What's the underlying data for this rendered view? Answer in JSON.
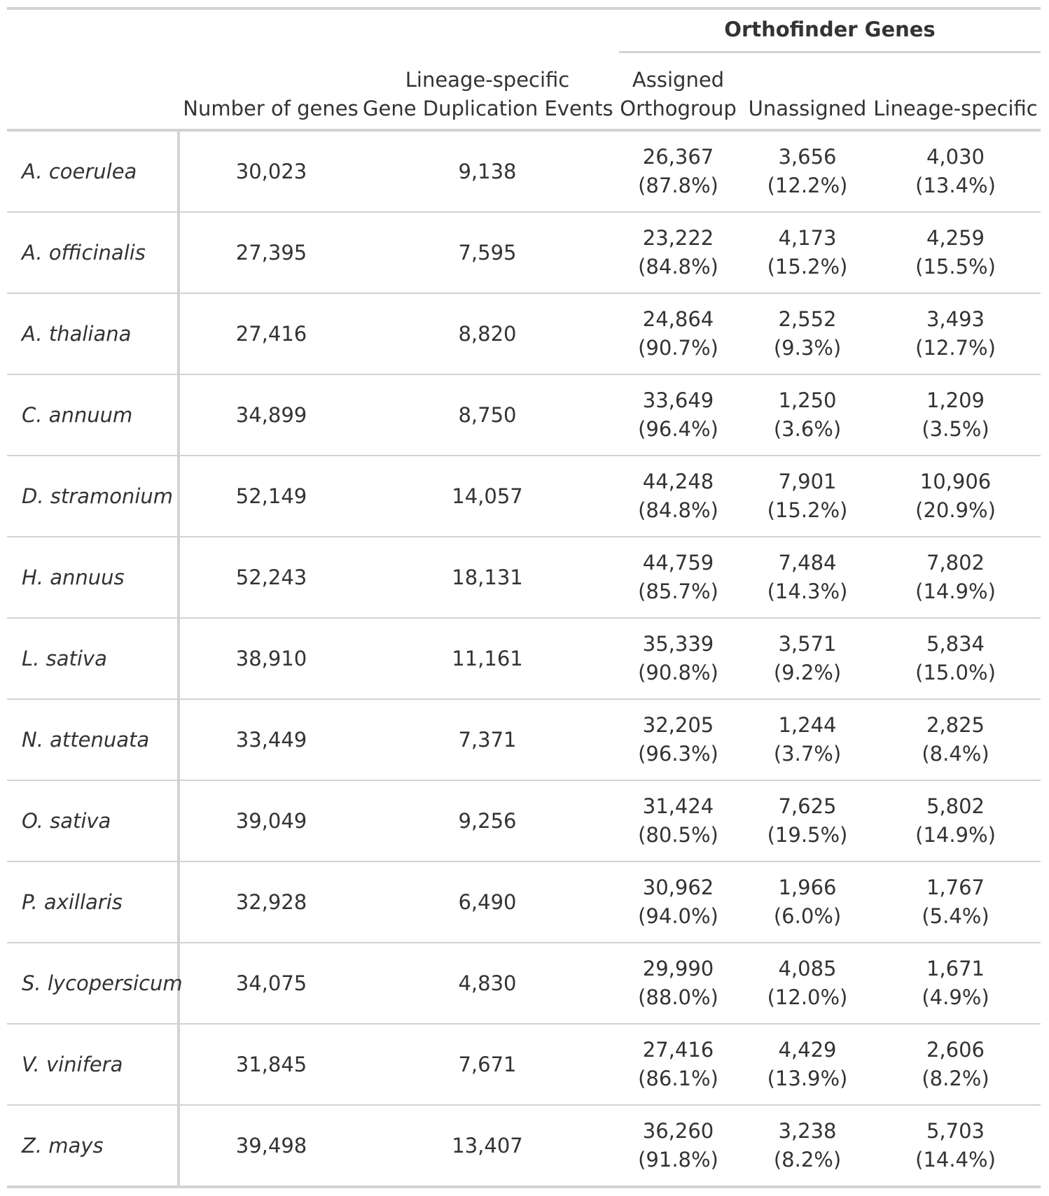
{
  "table": {
    "spanner_label": "Orthofinder Genes",
    "columns": {
      "species": "",
      "number_of_genes": "Number of genes",
      "duplication": [
        "Lineage-specific",
        "Gene Duplication Events"
      ],
      "assigned": [
        "Assigned",
        "Orthogroup"
      ],
      "unassigned": "Unassigned",
      "lineage_specific": "Lineage-specific"
    },
    "rows": [
      {
        "species": "A. coerulea",
        "genes": "30,023",
        "duplications": "9,138",
        "assigned": "26,367",
        "assigned_pct": "(87.8%)",
        "unassigned": "3,656",
        "unassigned_pct": "(12.2%)",
        "lineage": "4,030",
        "lineage_pct": "(13.4%)"
      },
      {
        "species": "A. officinalis",
        "genes": "27,395",
        "duplications": "7,595",
        "assigned": "23,222",
        "assigned_pct": "(84.8%)",
        "unassigned": "4,173",
        "unassigned_pct": "(15.2%)",
        "lineage": "4,259",
        "lineage_pct": "(15.5%)"
      },
      {
        "species": "A. thaliana",
        "genes": "27,416",
        "duplications": "8,820",
        "assigned": "24,864",
        "assigned_pct": "(90.7%)",
        "unassigned": "2,552",
        "unassigned_pct": "(9.3%)",
        "lineage": "3,493",
        "lineage_pct": "(12.7%)"
      },
      {
        "species": "C. annuum",
        "genes": "34,899",
        "duplications": "8,750",
        "assigned": "33,649",
        "assigned_pct": "(96.4%)",
        "unassigned": "1,250",
        "unassigned_pct": "(3.6%)",
        "lineage": "1,209",
        "lineage_pct": "(3.5%)"
      },
      {
        "species": "D. stramonium",
        "genes": "52,149",
        "duplications": "14,057",
        "assigned": "44,248",
        "assigned_pct": "(84.8%)",
        "unassigned": "7,901",
        "unassigned_pct": "(15.2%)",
        "lineage": "10,906",
        "lineage_pct": "(20.9%)"
      },
      {
        "species": "H. annuus",
        "genes": "52,243",
        "duplications": "18,131",
        "assigned": "44,759",
        "assigned_pct": "(85.7%)",
        "unassigned": "7,484",
        "unassigned_pct": "(14.3%)",
        "lineage": "7,802",
        "lineage_pct": "(14.9%)"
      },
      {
        "species": "L. sativa",
        "genes": "38,910",
        "duplications": "11,161",
        "assigned": "35,339",
        "assigned_pct": "(90.8%)",
        "unassigned": "3,571",
        "unassigned_pct": "(9.2%)",
        "lineage": "5,834",
        "lineage_pct": "(15.0%)"
      },
      {
        "species": "N. attenuata",
        "genes": "33,449",
        "duplications": "7,371",
        "assigned": "32,205",
        "assigned_pct": "(96.3%)",
        "unassigned": "1,244",
        "unassigned_pct": "(3.7%)",
        "lineage": "2,825",
        "lineage_pct": "(8.4%)"
      },
      {
        "species": "O. sativa",
        "genes": "39,049",
        "duplications": "9,256",
        "assigned": "31,424",
        "assigned_pct": "(80.5%)",
        "unassigned": "7,625",
        "unassigned_pct": "(19.5%)",
        "lineage": "5,802",
        "lineage_pct": "(14.9%)"
      },
      {
        "species": "P. axillaris",
        "genes": "32,928",
        "duplications": "6,490",
        "assigned": "30,962",
        "assigned_pct": "(94.0%)",
        "unassigned": "1,966",
        "unassigned_pct": "(6.0%)",
        "lineage": "1,767",
        "lineage_pct": "(5.4%)"
      },
      {
        "species": "S. lycopersicum",
        "genes": "34,075",
        "duplications": "4,830",
        "assigned": "29,990",
        "assigned_pct": "(88.0%)",
        "unassigned": "4,085",
        "unassigned_pct": "(12.0%)",
        "lineage": "1,671",
        "lineage_pct": "(4.9%)"
      },
      {
        "species": "V. vinifera",
        "genes": "31,845",
        "duplications": "7,671",
        "assigned": "27,416",
        "assigned_pct": "(86.1%)",
        "unassigned": "4,429",
        "unassigned_pct": "(13.9%)",
        "lineage": "2,606",
        "lineage_pct": "(8.2%)"
      },
      {
        "species": "Z. mays",
        "genes": "39,498",
        "duplications": "13,407",
        "assigned": "36,260",
        "assigned_pct": "(91.8%)",
        "unassigned": "3,238",
        "unassigned_pct": "(8.2%)",
        "lineage": "5,703",
        "lineage_pct": "(14.4%)"
      }
    ]
  }
}
